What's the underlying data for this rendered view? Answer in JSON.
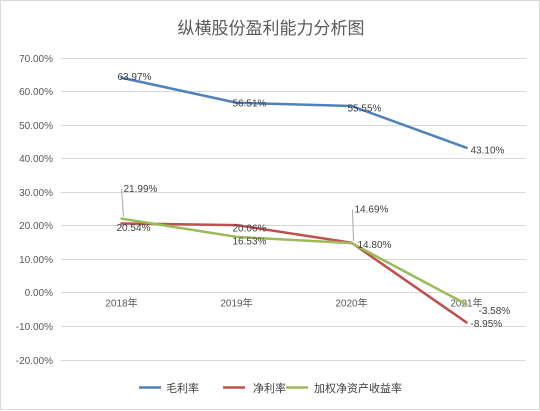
{
  "chart_data": {
    "type": "line",
    "title": "纵横股份盈利能力分析图",
    "categories": [
      "2018年",
      "2019年",
      "2020年",
      "2021年"
    ],
    "ylim": [
      -20,
      70
    ],
    "yticks": [
      "70.00%",
      "60.00%",
      "50.00%",
      "40.00%",
      "30.00%",
      "20.00%",
      "10.00%",
      "0.00%",
      "-10.00%",
      "-20.00%"
    ],
    "grid": true,
    "legend_position": "bottom",
    "series": [
      {
        "name": "毛利率",
        "color": "#4F81BD",
        "values": [
          63.97,
          56.51,
          55.55,
          43.1
        ],
        "labels": [
          "63.97%",
          "56.51%",
          "55.55%",
          "43.10%"
        ]
      },
      {
        "name": "净利率",
        "color": "#C0504D",
        "values": [
          20.54,
          20.06,
          14.8,
          -8.95
        ],
        "labels": [
          "20.54%",
          "20.06%",
          "14.80%",
          "-8.95%"
        ]
      },
      {
        "name": "加权净资产收益率",
        "color": "#9BBB59",
        "values": [
          21.99,
          16.53,
          14.69,
          -3.58
        ],
        "labels": [
          "21.99%",
          "16.53%",
          "14.69%",
          "-3.58%"
        ]
      }
    ]
  }
}
